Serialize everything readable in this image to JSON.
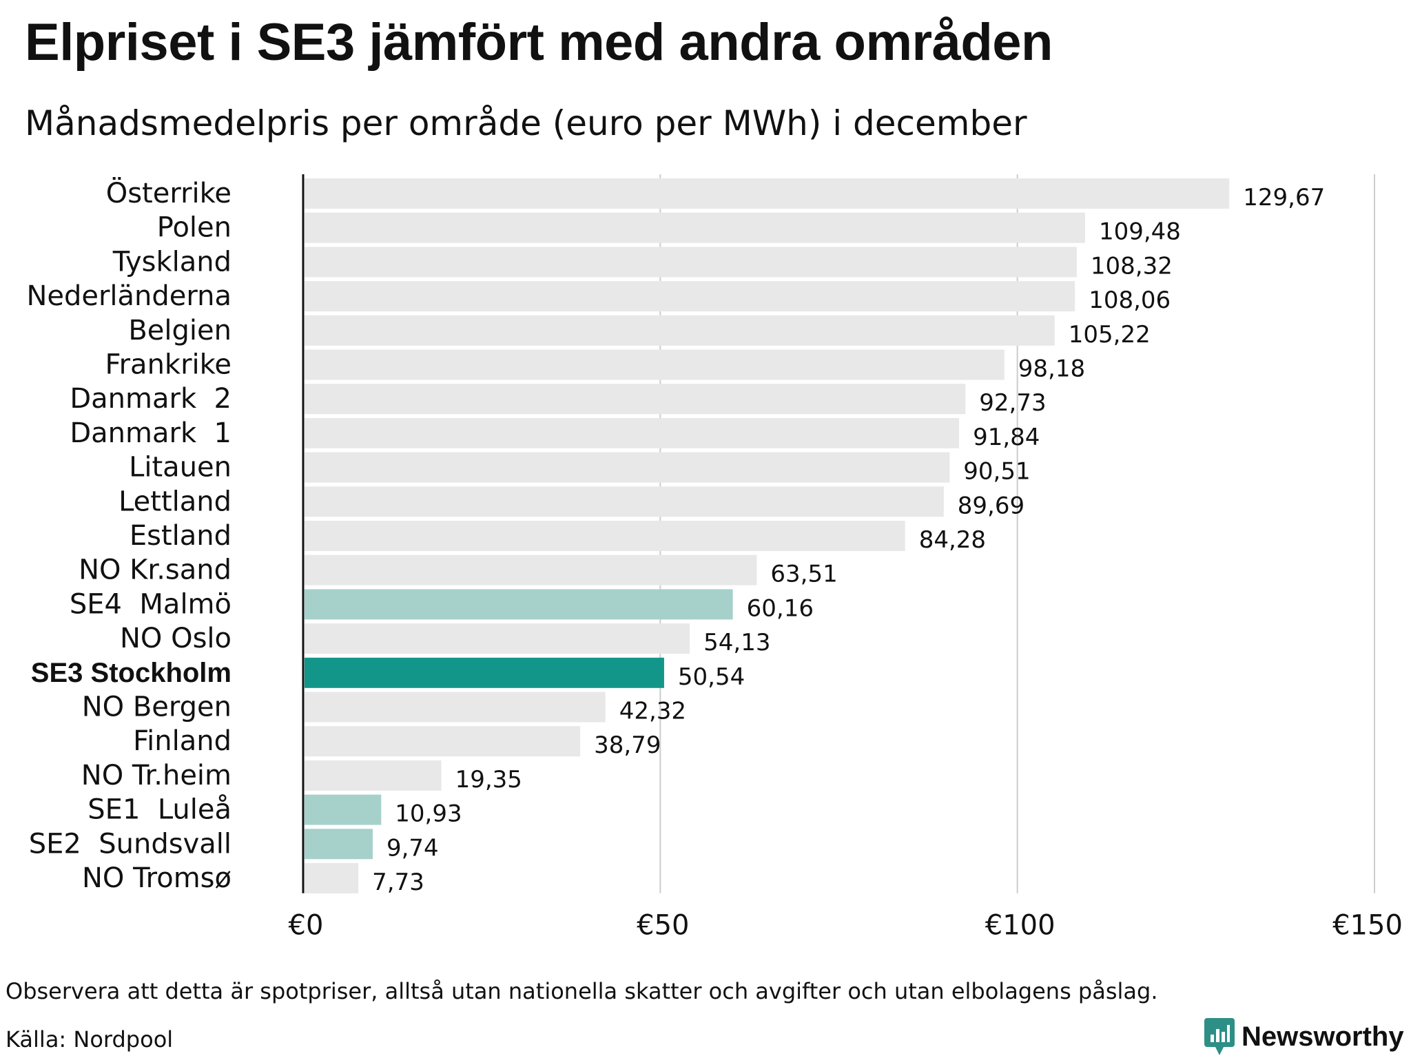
{
  "header": {
    "title": "Elpriset i SE3 jämfört med andra områden",
    "subtitle": "Månadsmedelpris per område (euro per MWh) i december"
  },
  "colors": {
    "default_bar": "#e8e8e8",
    "swedish_bar": "#a6d1cb",
    "highlight_bar": "#12968a",
    "gridline": "#cccccc",
    "axis": "#111111",
    "brand": "#2e8f86"
  },
  "chart_data": {
    "type": "bar",
    "orientation": "horizontal",
    "categories": [
      "Österrike",
      "Polen",
      "Tyskland",
      "Nederländerna",
      "Belgien",
      "Frankrike",
      "Danmark  2",
      "Danmark  1",
      "Litauen",
      "Lettland",
      "Estland",
      "NO Kr.sand",
      "SE4  Malmö",
      "NO Oslo",
      "SE3 Stockholm",
      "NO Bergen",
      "Finland",
      "NO Tr.heim",
      "SE1  Luleå",
      "SE2  Sundsvall",
      "NO Tromsø"
    ],
    "values": [
      129.67,
      109.48,
      108.32,
      108.06,
      105.22,
      98.18,
      92.73,
      91.84,
      90.51,
      89.69,
      84.28,
      63.51,
      60.16,
      54.13,
      50.54,
      42.32,
      38.79,
      19.35,
      10.93,
      9.74,
      7.73
    ],
    "value_labels": [
      "129,67",
      "109,48",
      "108,32",
      "108,06",
      "105,22",
      "98,18",
      "92,73",
      "91,84",
      "90,51",
      "89,69",
      "84,28",
      "63,51",
      "60,16",
      "54,13",
      "50,54",
      "42,32",
      "38,79",
      "19,35",
      "10,93",
      "9,74",
      "7,73"
    ],
    "bar_style": [
      "default",
      "default",
      "default",
      "default",
      "default",
      "default",
      "default",
      "default",
      "default",
      "default",
      "default",
      "default",
      "swedish",
      "default",
      "highlight",
      "default",
      "default",
      "default",
      "swedish",
      "swedish",
      "default"
    ],
    "xlim": [
      0,
      150
    ],
    "xticks": [
      0,
      50,
      100,
      150
    ],
    "xtick_labels": [
      "€0",
      "€50",
      "€100",
      "€150"
    ],
    "grid": true,
    "xlabel": "",
    "ylabel": ""
  },
  "footer": {
    "note": "Observera att detta är spotpriser, alltså utan nationella skatter och avgifter och utan elbolagens påslag.",
    "source": "Källa: Nordpool",
    "brand": "Newsworthy"
  }
}
